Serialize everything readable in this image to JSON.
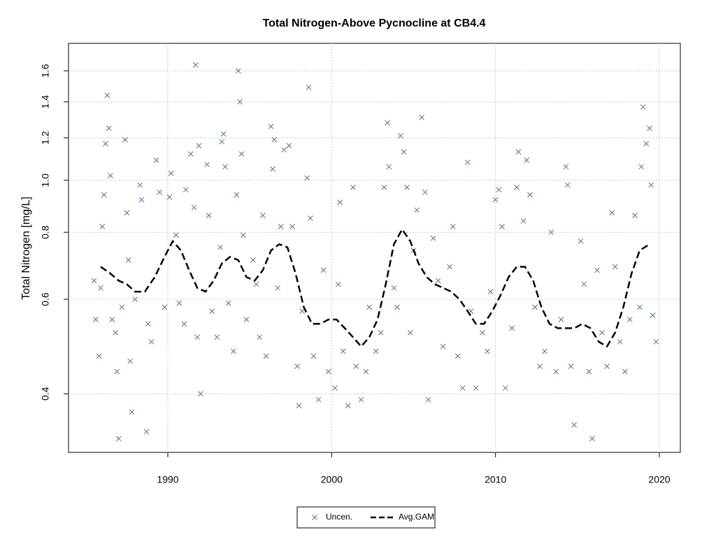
{
  "chart_data": {
    "type": "scatter",
    "title": "Total Nitrogen-Above Pycnocline at CB4.4",
    "y_label": "Total Nitrogen [mg/L]",
    "xlim": [
      1983.94,
      2021.28
    ],
    "xticks": [
      1990,
      2000,
      2010,
      2020
    ],
    "ylim": [
      0.311,
      1.8
    ],
    "yticks": [
      0.4,
      0.6,
      0.8,
      1.0,
      1.2,
      1.4,
      1.6
    ],
    "y_log": true,
    "grid": true,
    "legend_position": "bottom",
    "series": [
      {
        "name": "Uncen.",
        "color": "#5a6e8c",
        "marker": "x",
        "x": [
          1985.5,
          1985.6,
          1985.8,
          1985.9,
          1986.0,
          1986.1,
          1986.2,
          1986.3,
          1986.4,
          1986.5,
          1986.6,
          1986.8,
          1986.9,
          1987.0,
          1987.2,
          1987.4,
          1987.5,
          1987.6,
          1987.7,
          1987.8,
          1988.0,
          1988.3,
          1988.4,
          1988.7,
          1988.8,
          1989.0,
          1989.3,
          1989.5,
          1989.8,
          1990.1,
          1990.2,
          1990.5,
          1990.7,
          1991.0,
          1991.1,
          1991.4,
          1991.6,
          1991.7,
          1991.8,
          1991.9,
          1992.0,
          1992.4,
          1992.5,
          1992.7,
          1993.0,
          1993.2,
          1993.3,
          1993.4,
          1993.5,
          1993.7,
          1994.0,
          1994.2,
          1994.3,
          1994.4,
          1994.5,
          1994.6,
          1994.8,
          1995.2,
          1995.4,
          1995.6,
          1995.8,
          1996.0,
          1996.3,
          1996.4,
          1996.5,
          1996.7,
          1996.9,
          1997.1,
          1997.4,
          1997.6,
          1997.9,
          1998.0,
          1998.2,
          1998.5,
          1998.6,
          1998.7,
          1998.9,
          1999.2,
          1999.5,
          1999.8,
          2000.2,
          2000.4,
          2000.5,
          2000.7,
          2001.0,
          2001.3,
          2001.5,
          2001.8,
          2002.1,
          2002.3,
          2002.7,
          2003.0,
          2003.2,
          2003.4,
          2003.5,
          2003.8,
          2004.0,
          2004.2,
          2004.4,
          2004.6,
          2004.8,
          2005.0,
          2005.2,
          2005.5,
          2005.7,
          2005.9,
          2006.2,
          2006.5,
          2006.8,
          2007.2,
          2007.4,
          2007.7,
          2008.0,
          2008.3,
          2008.5,
          2008.8,
          2009.2,
          2009.5,
          2009.7,
          2010.0,
          2010.2,
          2010.4,
          2010.6,
          2011.0,
          2011.3,
          2011.4,
          2011.7,
          2011.9,
          2012.1,
          2012.4,
          2012.7,
          2013.0,
          2013.4,
          2013.7,
          2014.0,
          2014.3,
          2014.4,
          2014.6,
          2014.8,
          2015.2,
          2015.4,
          2015.7,
          2015.9,
          2016.2,
          2016.5,
          2016.8,
          2017.1,
          2017.3,
          2017.6,
          2017.9,
          2018.2,
          2018.5,
          2018.8,
          2018.9,
          2019.0,
          2019.2,
          2019.4,
          2019.5,
          2019.6,
          2019.8
        ],
        "values": [
          0.65,
          0.55,
          0.47,
          0.63,
          0.82,
          0.94,
          1.17,
          1.44,
          1.25,
          1.02,
          0.55,
          0.52,
          0.44,
          0.33,
          0.58,
          1.19,
          0.87,
          0.71,
          0.46,
          0.37,
          0.6,
          0.98,
          0.92,
          0.34,
          0.54,
          0.5,
          1.09,
          0.95,
          0.58,
          0.93,
          1.03,
          0.79,
          0.59,
          0.54,
          0.96,
          1.12,
          0.89,
          1.64,
          0.51,
          1.16,
          0.4,
          1.07,
          0.86,
          0.57,
          0.51,
          0.75,
          1.18,
          1.22,
          1.06,
          0.59,
          0.48,
          0.94,
          1.6,
          1.4,
          1.12,
          0.79,
          0.55,
          0.71,
          0.64,
          0.51,
          0.86,
          0.47,
          1.26,
          1.05,
          1.19,
          0.63,
          0.82,
          1.14,
          1.16,
          0.82,
          0.45,
          0.38,
          0.57,
          1.01,
          1.49,
          0.85,
          0.47,
          0.39,
          0.68,
          0.44,
          0.41,
          0.64,
          0.91,
          0.48,
          0.38,
          0.97,
          0.45,
          0.39,
          0.44,
          0.58,
          0.48,
          0.52,
          0.97,
          1.28,
          1.06,
          0.63,
          0.58,
          1.21,
          1.13,
          0.97,
          0.52,
          0.74,
          0.88,
          1.31,
          0.95,
          0.39,
          0.78,
          0.65,
          0.49,
          0.69,
          0.82,
          0.47,
          0.41,
          1.08,
          0.57,
          0.41,
          0.52,
          0.48,
          0.62,
          0.92,
          0.96,
          0.82,
          0.41,
          0.53,
          0.97,
          1.13,
          0.84,
          1.09,
          0.94,
          0.58,
          0.45,
          0.48,
          0.8,
          0.44,
          0.55,
          1.06,
          0.98,
          0.45,
          0.35,
          0.77,
          0.64,
          0.44,
          0.33,
          0.68,
          0.52,
          0.45,
          0.87,
          0.69,
          0.5,
          0.44,
          0.55,
          0.86,
          0.58,
          1.06,
          1.37,
          1.17,
          1.25,
          0.98,
          0.56,
          0.5
        ]
      },
      {
        "name": "Avg.GAM",
        "color": "#000000",
        "marker": "dashed-line",
        "x": [
          1985.9,
          1986.5,
          1987.0,
          1987.5,
          1988.0,
          1988.6,
          1989.2,
          1989.8,
          1990.3,
          1990.8,
          1991.3,
          1991.8,
          1992.3,
          1992.8,
          1993.3,
          1993.8,
          1994.3,
          1994.8,
          1995.3,
          1995.8,
          1996.3,
          1996.8,
          1997.3,
          1997.8,
          1998.3,
          1998.8,
          1999.3,
          1999.8,
          2000.3,
          2000.8,
          2001.3,
          2001.8,
          2002.3,
          2002.8,
          2003.3,
          2003.8,
          2004.3,
          2004.8,
          2005.3,
          2005.8,
          2006.3,
          2006.8,
          2007.3,
          2007.8,
          2008.3,
          2008.8,
          2009.3,
          2009.8,
          2010.3,
          2010.8,
          2011.3,
          2011.8,
          2012.3,
          2012.8,
          2013.3,
          2013.8,
          2014.3,
          2014.8,
          2015.3,
          2015.8,
          2016.3,
          2016.8,
          2017.3,
          2017.8,
          2018.3,
          2018.8,
          2019.4
        ],
        "values": [
          0.69,
          0.67,
          0.65,
          0.64,
          0.62,
          0.62,
          0.66,
          0.72,
          0.77,
          0.74,
          0.68,
          0.63,
          0.62,
          0.65,
          0.7,
          0.72,
          0.71,
          0.66,
          0.65,
          0.68,
          0.74,
          0.76,
          0.75,
          0.67,
          0.58,
          0.54,
          0.54,
          0.55,
          0.55,
          0.53,
          0.51,
          0.49,
          0.51,
          0.55,
          0.64,
          0.76,
          0.81,
          0.77,
          0.7,
          0.66,
          0.64,
          0.63,
          0.62,
          0.6,
          0.57,
          0.54,
          0.54,
          0.57,
          0.61,
          0.66,
          0.69,
          0.69,
          0.65,
          0.58,
          0.54,
          0.53,
          0.53,
          0.53,
          0.54,
          0.53,
          0.5,
          0.49,
          0.52,
          0.58,
          0.67,
          0.74,
          0.76
        ]
      }
    ]
  }
}
